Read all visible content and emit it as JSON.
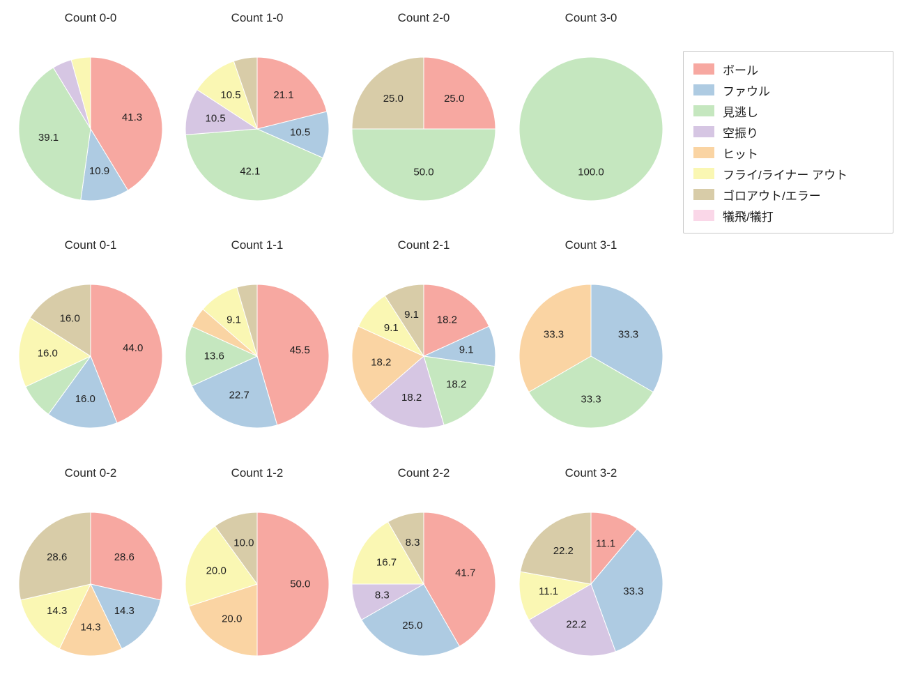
{
  "figure": {
    "background": "#ffffff",
    "title_color": "#262626",
    "label_color": "#1f1f1f"
  },
  "pie_style": {
    "start_angle_deg": 90,
    "direction": "clockwise",
    "label_distance": 0.6,
    "legend_position": "top-right"
  },
  "legend": {
    "items": [
      {
        "key": "ball",
        "label": "ボール",
        "color": "#f7a8a1"
      },
      {
        "key": "foul",
        "label": "ファウル",
        "color": "#aecbe2"
      },
      {
        "key": "called-strike",
        "label": "見逃し",
        "color": "#c5e7bf"
      },
      {
        "key": "swinging-strike",
        "label": "空振り",
        "color": "#d6c6e3"
      },
      {
        "key": "hit",
        "label": "ヒット",
        "color": "#fad4a3"
      },
      {
        "key": "fly-liner-out",
        "label": "フライ/ライナー アウト",
        "color": "#faf7b3"
      },
      {
        "key": "groundout-error",
        "label": "ゴロアウト/エラー",
        "color": "#d8cca8"
      },
      {
        "key": "sac-fly-bunt",
        "label": "犠飛/犠打",
        "color": "#fad7e8"
      }
    ]
  },
  "chart_data": [
    {
      "type": "pie",
      "title": "Count 0-0",
      "slices": [
        {
          "category": "ボール",
          "value": 41.3,
          "label": "41.3"
        },
        {
          "category": "ファウル",
          "value": 10.9,
          "label": "10.9"
        },
        {
          "category": "見逃し",
          "value": 39.1,
          "label": "39.1"
        },
        {
          "category": "空振り",
          "value": 4.35,
          "label": ""
        },
        {
          "category": "フライ/ライナー アウト",
          "value": 4.35,
          "label": ""
        }
      ]
    },
    {
      "type": "pie",
      "title": "Count 1-0",
      "slices": [
        {
          "category": "ボール",
          "value": 21.1,
          "label": "21.1"
        },
        {
          "category": "ファウル",
          "value": 10.5,
          "label": "10.5"
        },
        {
          "category": "見逃し",
          "value": 42.1,
          "label": "42.1"
        },
        {
          "category": "空振り",
          "value": 10.5,
          "label": "10.5"
        },
        {
          "category": "フライ/ライナー アウト",
          "value": 10.5,
          "label": "10.5"
        },
        {
          "category": "ゴロアウト/エラー",
          "value": 5.3,
          "label": ""
        }
      ]
    },
    {
      "type": "pie",
      "title": "Count 2-0",
      "slices": [
        {
          "category": "ボール",
          "value": 25.0,
          "label": "25.0"
        },
        {
          "category": "見逃し",
          "value": 50.0,
          "label": "50.0"
        },
        {
          "category": "ゴロアウト/エラー",
          "value": 25.0,
          "label": "25.0"
        }
      ]
    },
    {
      "type": "pie",
      "title": "Count 3-0",
      "slices": [
        {
          "category": "見逃し",
          "value": 100.0,
          "label": "100.0"
        }
      ]
    },
    {
      "type": "pie",
      "title": "Count 0-1",
      "slices": [
        {
          "category": "ボール",
          "value": 44.0,
          "label": "44.0"
        },
        {
          "category": "ファウル",
          "value": 16.0,
          "label": "16.0"
        },
        {
          "category": "見逃し",
          "value": 8.0,
          "label": ""
        },
        {
          "category": "フライ/ライナー アウト",
          "value": 16.0,
          "label": "16.0"
        },
        {
          "category": "ゴロアウト/エラー",
          "value": 16.0,
          "label": "16.0"
        }
      ]
    },
    {
      "type": "pie",
      "title": "Count 1-1",
      "slices": [
        {
          "category": "ボール",
          "value": 45.5,
          "label": "45.5"
        },
        {
          "category": "ファウル",
          "value": 22.7,
          "label": "22.7"
        },
        {
          "category": "見逃し",
          "value": 13.6,
          "label": "13.6"
        },
        {
          "category": "ヒット",
          "value": 4.55,
          "label": ""
        },
        {
          "category": "フライ/ライナー アウト",
          "value": 9.1,
          "label": "9.1"
        },
        {
          "category": "ゴロアウト/エラー",
          "value": 4.55,
          "label": ""
        }
      ]
    },
    {
      "type": "pie",
      "title": "Count 2-1",
      "slices": [
        {
          "category": "ボール",
          "value": 18.2,
          "label": "18.2"
        },
        {
          "category": "ファウル",
          "value": 9.1,
          "label": "9.1"
        },
        {
          "category": "見逃し",
          "value": 18.2,
          "label": "18.2"
        },
        {
          "category": "空振り",
          "value": 18.2,
          "label": "18.2"
        },
        {
          "category": "ヒット",
          "value": 18.2,
          "label": "18.2"
        },
        {
          "category": "フライ/ライナー アウト",
          "value": 9.1,
          "label": "9.1"
        },
        {
          "category": "ゴロアウト/エラー",
          "value": 9.1,
          "label": "9.1"
        }
      ]
    },
    {
      "type": "pie",
      "title": "Count 3-1",
      "slices": [
        {
          "category": "ファウル",
          "value": 33.3,
          "label": "33.3"
        },
        {
          "category": "見逃し",
          "value": 33.3,
          "label": "33.3"
        },
        {
          "category": "ヒット",
          "value": 33.3,
          "label": "33.3"
        }
      ]
    },
    {
      "type": "pie",
      "title": "Count 0-2",
      "slices": [
        {
          "category": "ボール",
          "value": 28.6,
          "label": "28.6"
        },
        {
          "category": "ファウル",
          "value": 14.3,
          "label": "14.3"
        },
        {
          "category": "ヒット",
          "value": 14.3,
          "label": "14.3"
        },
        {
          "category": "フライ/ライナー アウト",
          "value": 14.3,
          "label": "14.3"
        },
        {
          "category": "ゴロアウト/エラー",
          "value": 28.6,
          "label": "28.6"
        }
      ]
    },
    {
      "type": "pie",
      "title": "Count 1-2",
      "slices": [
        {
          "category": "ボール",
          "value": 50.0,
          "label": "50.0"
        },
        {
          "category": "ヒット",
          "value": 20.0,
          "label": "20.0"
        },
        {
          "category": "フライ/ライナー アウト",
          "value": 20.0,
          "label": "20.0"
        },
        {
          "category": "ゴロアウト/エラー",
          "value": 10.0,
          "label": "10.0"
        }
      ]
    },
    {
      "type": "pie",
      "title": "Count 2-2",
      "slices": [
        {
          "category": "ボール",
          "value": 41.7,
          "label": "41.7"
        },
        {
          "category": "ファウル",
          "value": 25.0,
          "label": "25.0"
        },
        {
          "category": "空振り",
          "value": 8.3,
          "label": "8.3"
        },
        {
          "category": "フライ/ライナー アウト",
          "value": 16.7,
          "label": "16.7"
        },
        {
          "category": "ゴロアウト/エラー",
          "value": 8.3,
          "label": "8.3"
        }
      ]
    },
    {
      "type": "pie",
      "title": "Count 3-2",
      "slices": [
        {
          "category": "ボール",
          "value": 11.1,
          "label": "11.1"
        },
        {
          "category": "ファウル",
          "value": 33.3,
          "label": "33.3"
        },
        {
          "category": "空振り",
          "value": 22.2,
          "label": "22.2"
        },
        {
          "category": "フライ/ライナー アウト",
          "value": 11.1,
          "label": "11.1"
        },
        {
          "category": "ゴロアウト/エラー",
          "value": 22.2,
          "label": "22.2"
        }
      ]
    }
  ]
}
